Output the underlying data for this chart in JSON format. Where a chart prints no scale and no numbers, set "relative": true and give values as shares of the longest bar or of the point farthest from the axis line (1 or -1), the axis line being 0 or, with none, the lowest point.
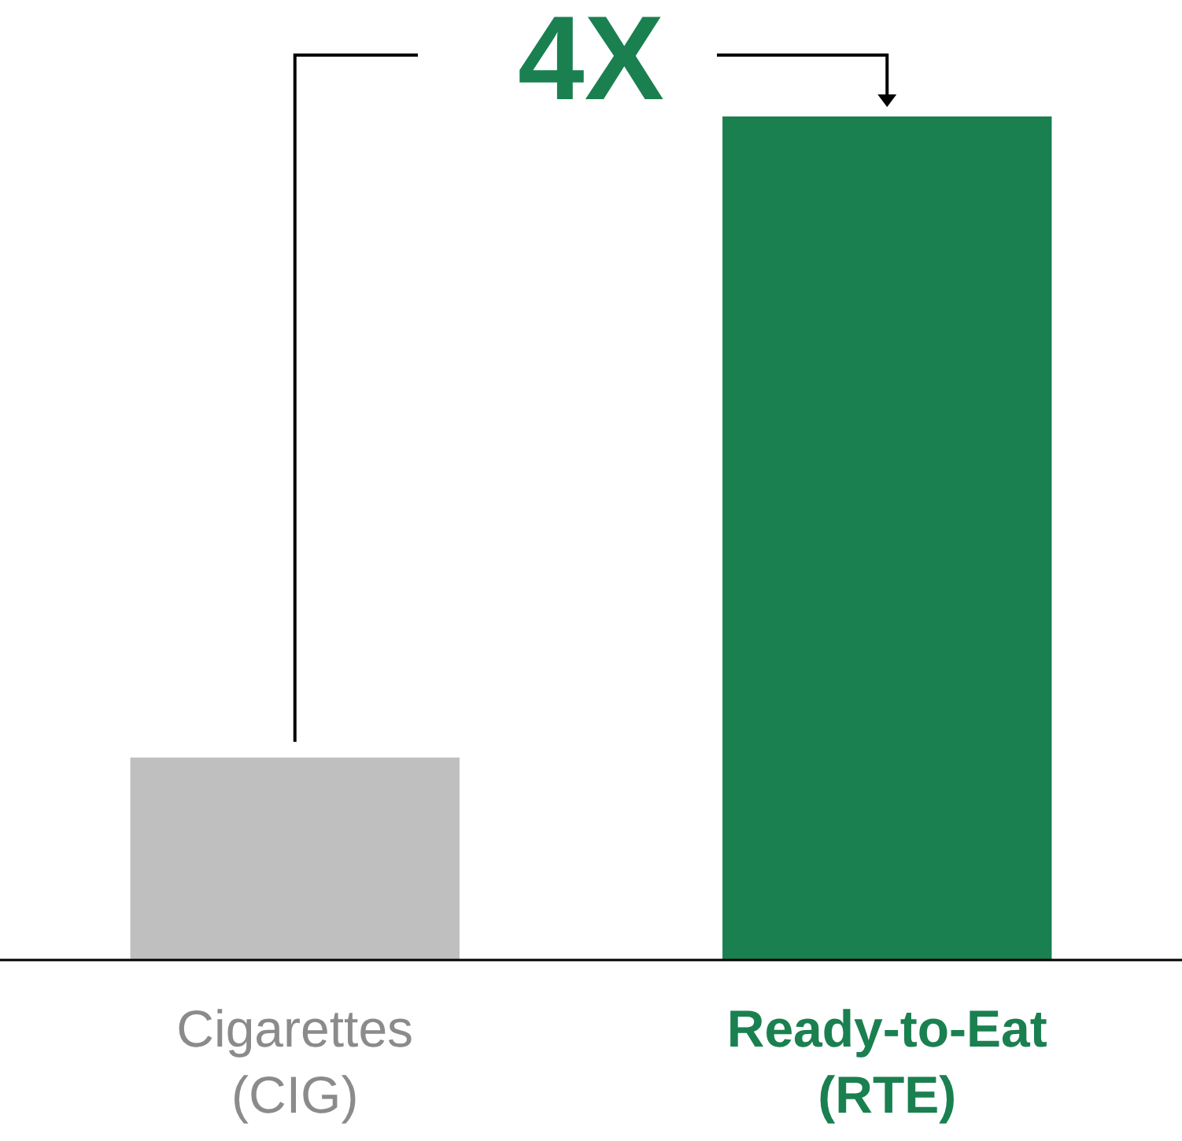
{
  "chart_data": {
    "type": "bar",
    "relative": true,
    "categories": [
      "Cigarettes (CIG)",
      "Ready-to-Eat (RTE)"
    ],
    "values": [
      0.24,
      1
    ],
    "colors": [
      "#bfbfbf",
      "#1a8050"
    ],
    "annotations": [
      "4X"
    ]
  }
}
